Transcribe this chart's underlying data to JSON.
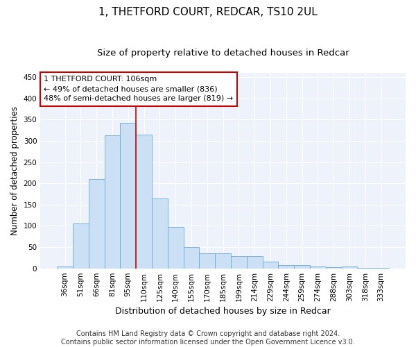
{
  "title1": "1, THETFORD COURT, REDCAR, TS10 2UL",
  "title2": "Size of property relative to detached houses in Redcar",
  "xlabel": "Distribution of detached houses by size in Redcar",
  "ylabel": "Number of detached properties",
  "categories": [
    "36sqm",
    "51sqm",
    "66sqm",
    "81sqm",
    "95sqm",
    "110sqm",
    "125sqm",
    "140sqm",
    "155sqm",
    "170sqm",
    "185sqm",
    "199sqm",
    "214sqm",
    "229sqm",
    "244sqm",
    "259sqm",
    "274sqm",
    "288sqm",
    "303sqm",
    "318sqm",
    "333sqm"
  ],
  "values": [
    5,
    106,
    210,
    313,
    343,
    315,
    165,
    97,
    50,
    35,
    35,
    29,
    29,
    15,
    8,
    8,
    5,
    2,
    5,
    1,
    1
  ],
  "bar_color": "#cce0f5",
  "bar_edge_color": "#6aaad4",
  "vline_color": "#cc0000",
  "vline_x_idx": 4.5,
  "box_edge_color": "#cc0000",
  "annotation_line1": "1 THETFORD COURT: 106sqm",
  "annotation_line2": "← 49% of detached houses are smaller (836)",
  "annotation_line3": "48% of semi-detached houses are larger (819) →",
  "footer1": "Contains HM Land Registry data © Crown copyright and database right 2024.",
  "footer2": "Contains public sector information licensed under the Open Government Licence v3.0.",
  "ylim": [
    0,
    460
  ],
  "yticks": [
    0,
    50,
    100,
    150,
    200,
    250,
    300,
    350,
    400,
    450
  ],
  "bg_color": "#eef2fa",
  "grid_color": "#ffffff",
  "title1_fontsize": 11,
  "title2_fontsize": 9.5,
  "xlabel_fontsize": 9,
  "ylabel_fontsize": 8.5,
  "tick_fontsize": 7.5,
  "ann_fontsize": 8,
  "footer_fontsize": 7
}
